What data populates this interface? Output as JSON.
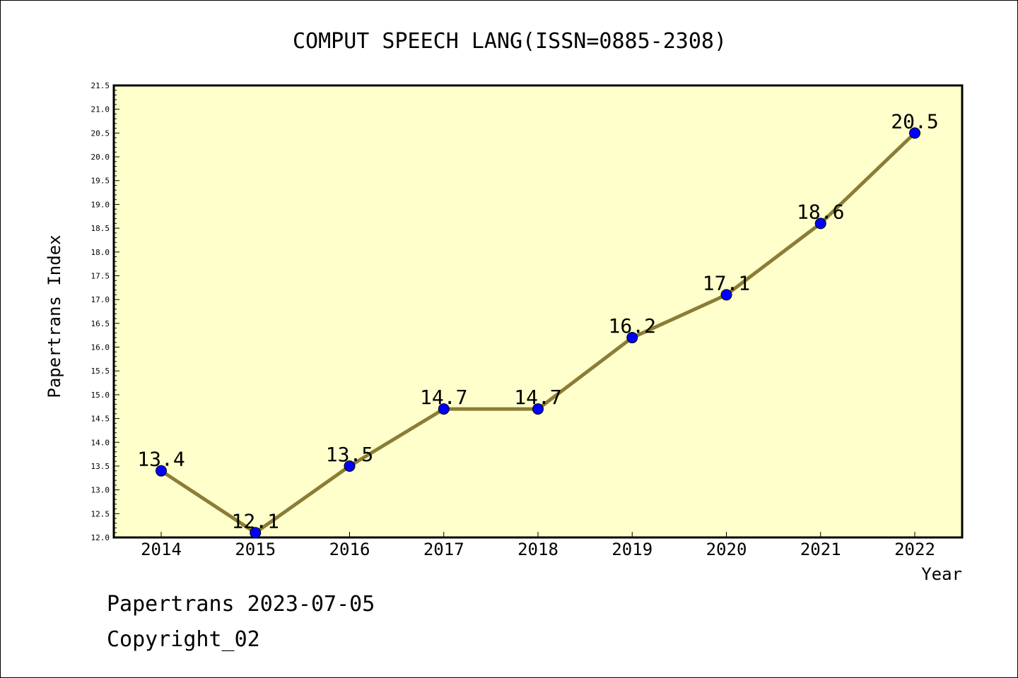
{
  "chart_data": {
    "type": "line",
    "title": "COMPUT SPEECH LANG(ISSN=0885-2308)",
    "xlabel": "Year",
    "ylabel": "Papertrans Index",
    "categories": [
      "2014",
      "2015",
      "2016",
      "2017",
      "2018",
      "2019",
      "2020",
      "2021",
      "2022"
    ],
    "values": [
      13.4,
      12.1,
      13.5,
      14.7,
      14.7,
      16.2,
      17.1,
      18.6,
      20.5
    ],
    "data_labels": [
      "13.4",
      "12.1",
      "13.5",
      "14.7",
      "14.7",
      "16.2",
      "17.1",
      "18.6",
      "20.5"
    ],
    "yticks": [
      "12.0",
      "12.5",
      "13.0",
      "13.5",
      "14.0",
      "14.5",
      "15.0",
      "15.5",
      "16.0",
      "16.5",
      "17.0",
      "17.5",
      "18.0",
      "18.5",
      "19.0",
      "19.5",
      "20.0",
      "20.5",
      "21.0",
      "21.5"
    ],
    "ylim": [
      12.0,
      21.5
    ],
    "grid": false,
    "colors": {
      "line": "#8b7d35",
      "marker": "#0000ff",
      "plot_background": "#ffffcc"
    }
  },
  "footer": {
    "line1": "Papertrans 2023-07-05",
    "line2": "Copyright_02"
  }
}
